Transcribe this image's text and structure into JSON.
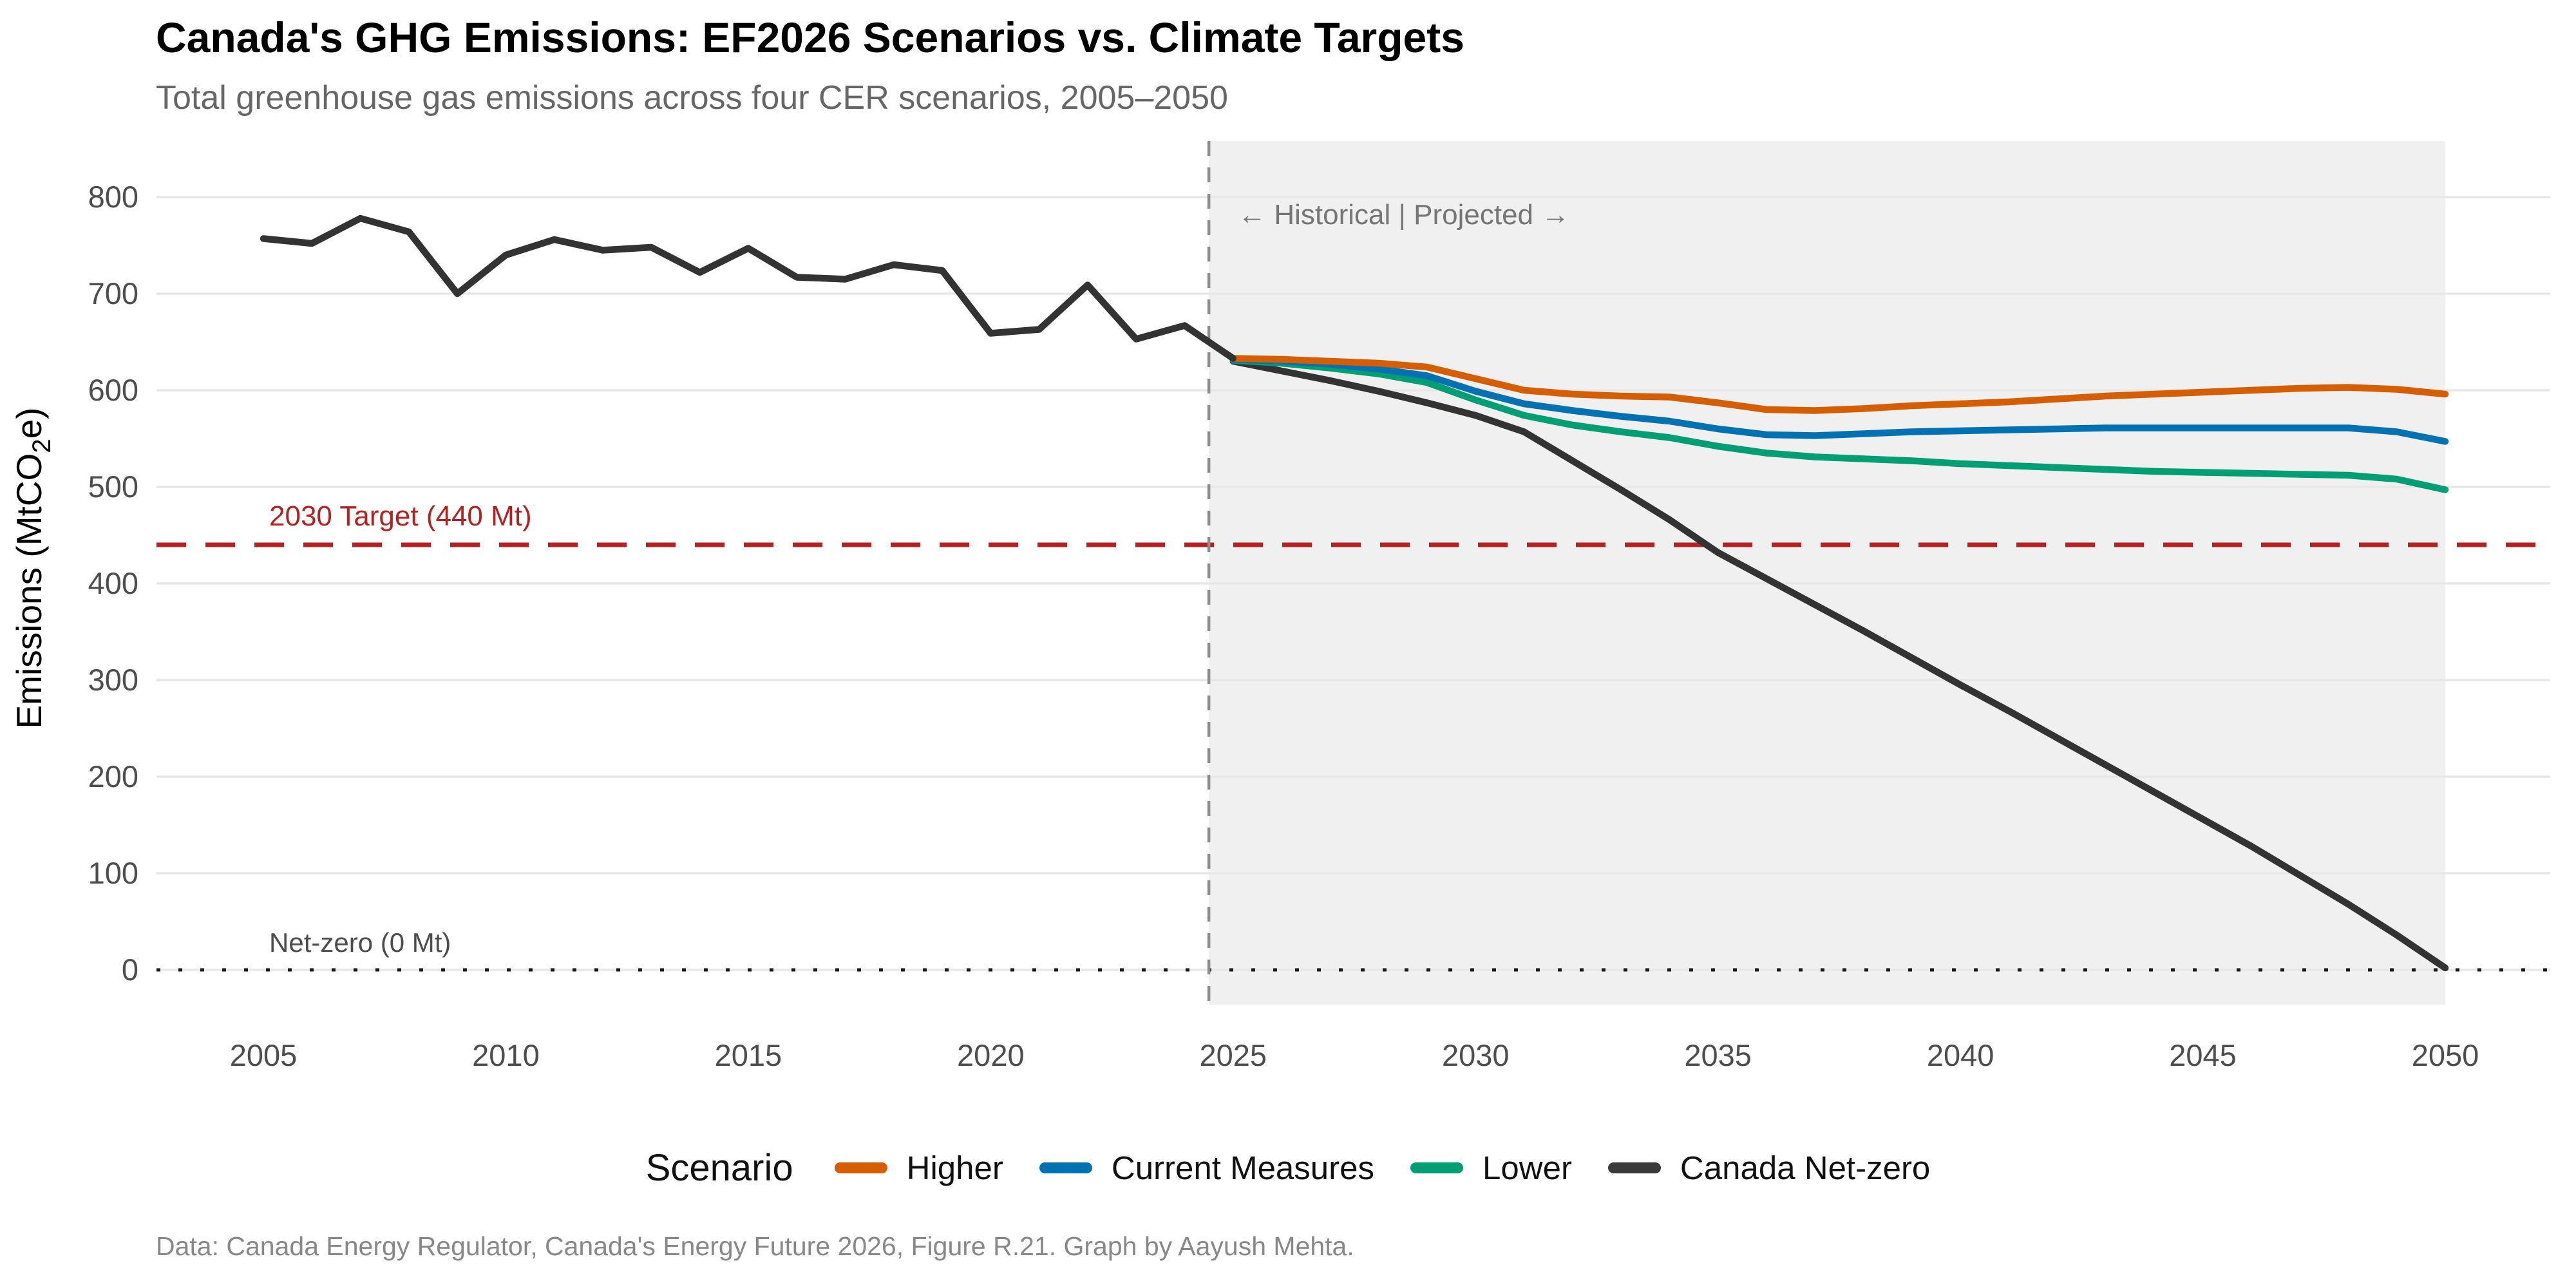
{
  "page": {
    "title": "Canada's GHG Emissions: EF2026 Scenarios vs. Climate Targets",
    "subtitle": "Total greenhouse gas emissions across four CER scenarios, 2005–2050",
    "caption": "Data: Canada Energy Regulator, Canada's Energy Future 2026, Figure R.21. Graph by Aayush Mehta."
  },
  "legend": {
    "title": "Scenario",
    "items": [
      {
        "label": "Higher",
        "color": "#D55E00"
      },
      {
        "label": "Current Measures",
        "color": "#0072B2"
      },
      {
        "label": "Lower",
        "color": "#009E73"
      },
      {
        "label": "Canada Net-zero",
        "color": "#3a3a3a"
      }
    ]
  },
  "colors": {
    "higher": "#D55E00",
    "current_measures": "#0072B2",
    "lower": "#009E73",
    "netzero_and_historical": "#333333",
    "target_line": "#B22222",
    "projected_region": "#f0f0f0",
    "gridline": "#e7e7e7",
    "divider_line": "#8c8c8c",
    "annotation_text": "#757575",
    "tick_text": "#4d4d4d"
  },
  "chart_data": {
    "type": "line",
    "title": "Canada's GHG Emissions: EF2026 Scenarios vs. Climate Targets",
    "subtitle": "Total greenhouse gas emissions across four CER scenarios, 2005–2050",
    "xlabel": "",
    "ylabel_pre": "Emissions (MtCO",
    "ylabel_sub": "2",
    "ylabel_post": "e)",
    "xlim": [
      2002.8,
      2052.2
    ],
    "ylim": [
      -36,
      858
    ],
    "x_ticks": [
      2005,
      2010,
      2015,
      2020,
      2025,
      2030,
      2035,
      2040,
      2045,
      2050
    ],
    "y_ticks": [
      0,
      100,
      200,
      300,
      400,
      500,
      600,
      700,
      800
    ],
    "grid": "horizontal",
    "legend_position": "bottom",
    "projected_region": {
      "from": 2024.5,
      "to": 2050
    },
    "annotations": {
      "divider_year": 2024.5,
      "divider_label": "← Historical  |  Projected →",
      "target_value": 440,
      "target_label": "2030 Target (440 Mt)",
      "netzero_value": 0,
      "netzero_label": "Net-zero (0 Mt)"
    },
    "series": [
      {
        "name": "Historical",
        "color": "#333333",
        "x": [
          2005,
          2006,
          2007,
          2008,
          2009,
          2010,
          2011,
          2012,
          2013,
          2014,
          2015,
          2016,
          2017,
          2018,
          2019,
          2020,
          2021,
          2022,
          2023,
          2024,
          2025
        ],
        "values": [
          757,
          752,
          778,
          764,
          700,
          740,
          756,
          745,
          748,
          722,
          747,
          717,
          715,
          730,
          724,
          659,
          663,
          709,
          653,
          667,
          633
        ]
      },
      {
        "name": "Higher",
        "color": "#D55E00",
        "x": [
          2025,
          2026,
          2027,
          2028,
          2029,
          2030,
          2031,
          2032,
          2033,
          2034,
          2035,
          2036,
          2037,
          2038,
          2039,
          2040,
          2041,
          2042,
          2043,
          2044,
          2045,
          2046,
          2047,
          2048,
          2049,
          2050
        ],
        "values": [
          633,
          632,
          630,
          628,
          624,
          612,
          600,
          596,
          594,
          593,
          587,
          580,
          579,
          581,
          584,
          586,
          588,
          591,
          594,
          596,
          598,
          600,
          602,
          603,
          601,
          596
        ]
      },
      {
        "name": "Current Measures",
        "color": "#0072B2",
        "x": [
          2025,
          2026,
          2027,
          2028,
          2029,
          2030,
          2031,
          2032,
          2033,
          2034,
          2035,
          2036,
          2037,
          2038,
          2039,
          2040,
          2041,
          2042,
          2043,
          2044,
          2045,
          2046,
          2047,
          2048,
          2049,
          2050
        ],
        "values": [
          632,
          630,
          627,
          622,
          615,
          599,
          586,
          579,
          573,
          568,
          560,
          554,
          553,
          555,
          557,
          558,
          559,
          560,
          561,
          561,
          561,
          561,
          561,
          561,
          557,
          547
        ]
      },
      {
        "name": "Lower",
        "color": "#009E73",
        "x": [
          2025,
          2026,
          2027,
          2028,
          2029,
          2030,
          2031,
          2032,
          2033,
          2034,
          2035,
          2036,
          2037,
          2038,
          2039,
          2040,
          2041,
          2042,
          2043,
          2044,
          2045,
          2046,
          2047,
          2048,
          2049,
          2050
        ],
        "values": [
          631,
          628,
          623,
          617,
          608,
          590,
          574,
          564,
          557,
          551,
          542,
          535,
          531,
          529,
          527,
          524,
          522,
          520,
          518,
          516,
          515,
          514,
          513,
          512,
          508,
          497
        ]
      },
      {
        "name": "Canada Net-zero",
        "color": "#333333",
        "x": [
          2025,
          2026,
          2027,
          2028,
          2029,
          2030,
          2031,
          2032,
          2033,
          2034,
          2035,
          2036,
          2037,
          2038,
          2039,
          2040,
          2041,
          2042,
          2043,
          2044,
          2045,
          2046,
          2047,
          2048,
          2049,
          2050
        ],
        "values": [
          630,
          620,
          610,
          599,
          587,
          574,
          557,
          527,
          497,
          466,
          432,
          405,
          378,
          351,
          323,
          295,
          268,
          240,
          212,
          184,
          156,
          128,
          98,
          68,
          36,
          2
        ]
      }
    ]
  }
}
